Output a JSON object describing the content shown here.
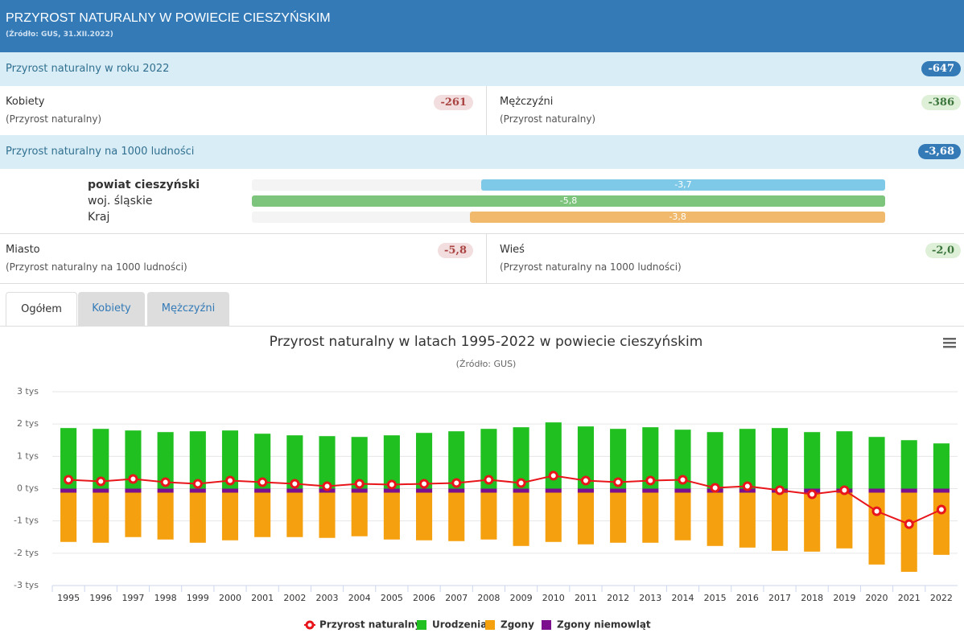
{
  "header": {
    "title": "PRZYROST NATURALNY W POWIECIE CIESZYŃSKIM",
    "source": "(Źródło: GUS, 31.XII.2022)"
  },
  "total_row": {
    "label": "Przyrost naturalny w roku 2022",
    "value": "-647"
  },
  "gender": [
    {
      "label": "Kobiety",
      "sub": "(Przyrost naturalny)",
      "value": "-261"
    },
    {
      "label": "Mężczyźni",
      "sub": "(Przyrost naturalny)",
      "value": "-386"
    }
  ],
  "rate_row": {
    "label": "Przyrost naturalny na 1000 ludności",
    "value": "-3,68"
  },
  "compare": [
    {
      "label": "powiat cieszyński",
      "value": -3.7,
      "value_label": "-3,7",
      "color": "#7ec8e8"
    },
    {
      "label": "woj. śląskie",
      "value": -5.8,
      "value_label": "-5,8",
      "color": "#7dc47d"
    },
    {
      "label": "Kraj",
      "value": -3.8,
      "value_label": "-3,8",
      "color": "#f0b96c"
    }
  ],
  "area": [
    {
      "label": "Miasto",
      "sub": "(Przyrost naturalny na 1000 ludności)",
      "value": "-5,8"
    },
    {
      "label": "Wieś",
      "sub": "(Przyrost naturalny na 1000 ludności)",
      "value": "-2,0"
    }
  ],
  "tabs": [
    "Ogółem",
    "Kobiety",
    "Mężczyźni"
  ],
  "chart_data": {
    "type": "bar",
    "title": "Przyrost naturalny w latach 1995-2022 w powiecie cieszyńskim",
    "subtitle": "(Źródło: GUS)",
    "categories": [
      "1995",
      "1996",
      "1997",
      "1998",
      "1999",
      "2000",
      "2001",
      "2002",
      "2003",
      "2004",
      "2005",
      "2006",
      "2007",
      "2008",
      "2009",
      "2010",
      "2011",
      "2012",
      "2013",
      "2014",
      "2015",
      "2016",
      "2017",
      "2018",
      "2019",
      "2020",
      "2021",
      "2022"
    ],
    "series": [
      {
        "name": "Przyrost naturalny",
        "type": "line",
        "color": "#e8151b",
        "values": [
          275,
          225,
          300,
          200,
          150,
          250,
          200,
          150,
          75,
          150,
          125,
          150,
          175,
          275,
          175,
          400,
          250,
          200,
          250,
          275,
          25,
          75,
          -50,
          -175,
          -50,
          -700,
          -1100,
          -647
        ]
      },
      {
        "name": "Urodzenia",
        "type": "bar",
        "color": "#1fc01f",
        "values": [
          1875,
          1850,
          1800,
          1750,
          1775,
          1800,
          1700,
          1650,
          1625,
          1600,
          1650,
          1725,
          1775,
          1850,
          1900,
          2050,
          1925,
          1850,
          1900,
          1825,
          1750,
          1850,
          1875,
          1750,
          1775,
          1600,
          1500,
          1400
        ]
      },
      {
        "name": "Zgony",
        "type": "bar",
        "color": "#f5a00f",
        "values": [
          -1650,
          -1675,
          -1500,
          -1575,
          -1675,
          -1600,
          -1500,
          -1500,
          -1525,
          -1475,
          -1575,
          -1600,
          -1625,
          -1575,
          -1775,
          -1650,
          -1725,
          -1675,
          -1675,
          -1600,
          -1775,
          -1825,
          -1925,
          -1950,
          -1850,
          -2350,
          -2575,
          -2050
        ]
      },
      {
        "name": "Zgony niemowląt",
        "type": "bar",
        "color": "#7b0f8e",
        "values": [
          -15,
          -14,
          -13,
          -12,
          -12,
          -11,
          -10,
          -10,
          -9,
          -9,
          -9,
          -8,
          -8,
          -8,
          -7,
          -7,
          -7,
          -6,
          -6,
          -6,
          -5,
          -5,
          -5,
          -5,
          -4,
          -4,
          -4,
          -4
        ]
      }
    ],
    "ylim": [
      -3000,
      3000
    ],
    "yticks": [
      {
        "value": -3000,
        "label": "-3 tys"
      },
      {
        "value": -2000,
        "label": "-2 tys"
      },
      {
        "value": -1000,
        "label": "-1 tys"
      },
      {
        "value": 0,
        "label": "0 tys"
      },
      {
        "value": 1000,
        "label": "1 tys"
      },
      {
        "value": 2000,
        "label": "2 tys"
      },
      {
        "value": 3000,
        "label": "3 tys"
      }
    ],
    "grid": true
  }
}
